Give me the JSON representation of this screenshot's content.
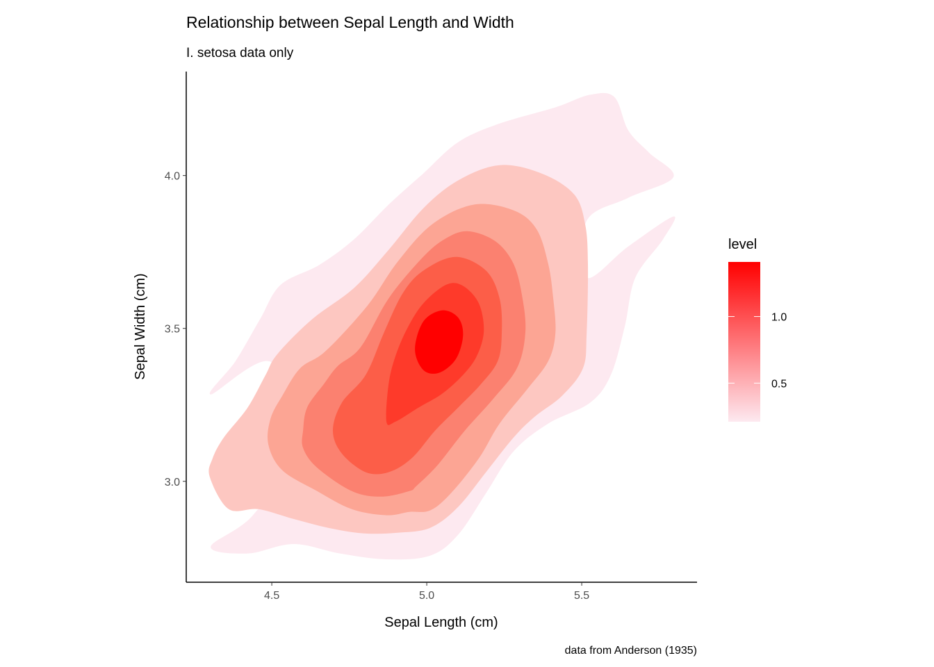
{
  "chart_data": {
    "type": "density_contour_filled",
    "title": "Relationship between Sepal Length and Width",
    "subtitle": "I. setosa data only",
    "xlabel": "Sepal Length (cm)",
    "ylabel": "Sepal Width (cm)",
    "caption": "data from Anderson (1935)",
    "xlim": [
      4.224,
      5.872
    ],
    "ylim": [
      2.67,
      4.34
    ],
    "x_ticks": [
      {
        "value": 4.5,
        "label": "4.5"
      },
      {
        "value": 5.0,
        "label": "5.0"
      },
      {
        "value": 5.5,
        "label": "5.5"
      }
    ],
    "y_ticks": [
      {
        "value": 3.0,
        "label": "3.0"
      },
      {
        "value": 3.5,
        "label": "3.5"
      },
      {
        "value": 4.0,
        "label": "4.0"
      }
    ],
    "grid": false,
    "legend": {
      "title": "level",
      "placement": "right",
      "range": [
        0.21,
        1.41
      ],
      "color_low": "#fde9f0",
      "color_high": "#ff0000",
      "ticks": [
        {
          "value": 0.5,
          "label": "0.5"
        },
        {
          "value": 1.0,
          "label": "1.0"
        }
      ]
    },
    "bands": [
      {
        "level": 0.25,
        "color": "#fde9f0",
        "polygon": [
          [
            4.303,
            3.284
          ],
          [
            4.383,
            3.393
          ],
          [
            4.462,
            3.53
          ],
          [
            4.529,
            3.643
          ],
          [
            4.652,
            3.707
          ],
          [
            4.765,
            3.791
          ],
          [
            4.877,
            3.905
          ],
          [
            4.989,
            4.007
          ],
          [
            5.101,
            4.109
          ],
          [
            5.235,
            4.17
          ],
          [
            5.415,
            4.223
          ],
          [
            5.527,
            4.264
          ],
          [
            5.605,
            4.257
          ],
          [
            5.65,
            4.148
          ],
          [
            5.717,
            4.075
          ],
          [
            5.796,
            3.995
          ],
          [
            5.65,
            3.927
          ],
          [
            5.516,
            3.852
          ],
          [
            5.516,
            3.666
          ],
          [
            5.65,
            3.768
          ],
          [
            5.796,
            3.866
          ],
          [
            5.762,
            3.791
          ],
          [
            5.673,
            3.666
          ],
          [
            5.639,
            3.507
          ],
          [
            5.594,
            3.348
          ],
          [
            5.527,
            3.257
          ],
          [
            5.392,
            3.189
          ],
          [
            5.28,
            3.098
          ],
          [
            5.191,
            2.961
          ],
          [
            5.101,
            2.825
          ],
          [
            5.011,
            2.757
          ],
          [
            4.87,
            2.745
          ],
          [
            4.72,
            2.764
          ],
          [
            4.57,
            2.795
          ],
          [
            4.422,
            2.764
          ],
          [
            4.303,
            2.786
          ],
          [
            4.439,
            2.889
          ],
          [
            4.563,
            3.098
          ],
          [
            4.5,
            3.389
          ]
        ]
      },
      {
        "level": 0.45,
        "color": "#fdc7c1",
        "polygon": [
          [
            4.3,
            3.014
          ],
          [
            4.309,
            3.075
          ],
          [
            4.345,
            3.143
          ],
          [
            4.422,
            3.241
          ],
          [
            4.48,
            3.348
          ],
          [
            4.518,
            3.416
          ],
          [
            4.63,
            3.53
          ],
          [
            4.765,
            3.632
          ],
          [
            4.877,
            3.757
          ],
          [
            4.989,
            3.893
          ],
          [
            5.101,
            3.984
          ],
          [
            5.235,
            4.034
          ],
          [
            5.37,
            4.007
          ],
          [
            5.475,
            3.939
          ],
          [
            5.511,
            3.841
          ],
          [
            5.52,
            3.711
          ],
          [
            5.516,
            3.484
          ],
          [
            5.504,
            3.37
          ],
          [
            5.437,
            3.28
          ],
          [
            5.348,
            3.211
          ],
          [
            5.28,
            3.143
          ],
          [
            5.191,
            3.03
          ],
          [
            5.101,
            2.916
          ],
          [
            5.011,
            2.848
          ],
          [
            4.906,
            2.832
          ],
          [
            4.794,
            2.83
          ],
          [
            4.682,
            2.848
          ],
          [
            4.57,
            2.877
          ],
          [
            4.457,
            2.909
          ],
          [
            4.361,
            2.909
          ]
        ]
      },
      {
        "level": 0.65,
        "color": "#fca594",
        "polygon": [
          [
            4.489,
            3.12
          ],
          [
            4.496,
            3.205
          ],
          [
            4.534,
            3.28
          ],
          [
            4.592,
            3.37
          ],
          [
            4.675,
            3.427
          ],
          [
            4.809,
            3.575
          ],
          [
            4.906,
            3.718
          ],
          [
            5.018,
            3.841
          ],
          [
            5.152,
            3.905
          ],
          [
            5.28,
            3.886
          ],
          [
            5.354,
            3.825
          ],
          [
            5.392,
            3.711
          ],
          [
            5.408,
            3.598
          ],
          [
            5.415,
            3.484
          ],
          [
            5.392,
            3.393
          ],
          [
            5.325,
            3.302
          ],
          [
            5.235,
            3.189
          ],
          [
            5.168,
            3.075
          ],
          [
            5.078,
            2.961
          ],
          [
            5.011,
            2.905
          ],
          [
            4.944,
            2.9
          ],
          [
            4.87,
            2.889
          ],
          [
            4.758,
            2.909
          ],
          [
            4.646,
            2.968
          ],
          [
            4.534,
            3.036
          ]
        ]
      },
      {
        "level": 0.85,
        "color": "#fb8170",
        "polygon": [
          [
            4.601,
            3.166
          ],
          [
            4.614,
            3.241
          ],
          [
            4.668,
            3.318
          ],
          [
            4.713,
            3.377
          ],
          [
            4.787,
            3.439
          ],
          [
            4.877,
            3.598
          ],
          [
            4.982,
            3.727
          ],
          [
            5.056,
            3.791
          ],
          [
            5.13,
            3.818
          ],
          [
            5.22,
            3.786
          ],
          [
            5.28,
            3.711
          ],
          [
            5.309,
            3.598
          ],
          [
            5.318,
            3.484
          ],
          [
            5.291,
            3.37
          ],
          [
            5.213,
            3.268
          ],
          [
            5.123,
            3.166
          ],
          [
            5.034,
            3.052
          ],
          [
            4.966,
            2.984
          ],
          [
            4.944,
            2.968
          ],
          [
            4.854,
            2.95
          ],
          [
            4.758,
            2.968
          ],
          [
            4.646,
            3.045
          ],
          [
            4.601,
            3.109
          ]
        ]
      },
      {
        "level": 1.05,
        "color": "#fc5e48",
        "polygon": [
          [
            4.697,
            3.166
          ],
          [
            4.726,
            3.257
          ],
          [
            4.803,
            3.348
          ],
          [
            4.861,
            3.484
          ],
          [
            4.922,
            3.614
          ],
          [
            4.989,
            3.689
          ],
          [
            5.094,
            3.734
          ],
          [
            5.191,
            3.689
          ],
          [
            5.235,
            3.598
          ],
          [
            5.242,
            3.484
          ],
          [
            5.229,
            3.393
          ],
          [
            5.175,
            3.318
          ],
          [
            5.101,
            3.241
          ],
          [
            5.027,
            3.166
          ],
          [
            4.951,
            3.075
          ],
          [
            4.877,
            3.03
          ],
          [
            4.803,
            3.03
          ],
          [
            4.726,
            3.091
          ]
        ]
      },
      {
        "level": 1.25,
        "color": "#fe3a2a",
        "polygon": [
          [
            4.87,
            3.195
          ],
          [
            4.877,
            3.318
          ],
          [
            4.899,
            3.409
          ],
          [
            4.937,
            3.5
          ],
          [
            4.989,
            3.582
          ],
          [
            5.063,
            3.643
          ],
          [
            5.117,
            3.639
          ],
          [
            5.168,
            3.582
          ],
          [
            5.184,
            3.491
          ],
          [
            5.161,
            3.409
          ],
          [
            5.117,
            3.348
          ],
          [
            5.049,
            3.286
          ],
          [
            4.973,
            3.241
          ],
          [
            4.899,
            3.195
          ]
        ]
      },
      {
        "level": 1.4,
        "color": "#ff0000",
        "polygon": [
          [
            4.962,
            3.432
          ],
          [
            4.989,
            3.523
          ],
          [
            5.049,
            3.559
          ],
          [
            5.101,
            3.536
          ],
          [
            5.117,
            3.477
          ],
          [
            5.094,
            3.4
          ],
          [
            5.04,
            3.355
          ],
          [
            4.989,
            3.364
          ]
        ]
      }
    ]
  }
}
